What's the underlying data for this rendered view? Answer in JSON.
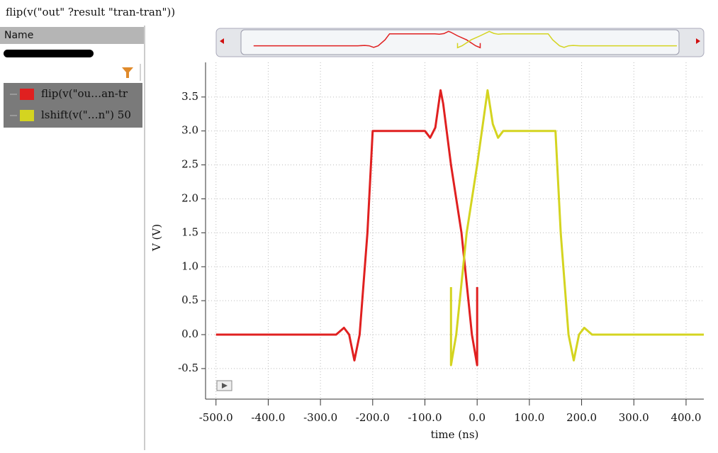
{
  "window": {
    "title": "flip(v(\"out\" ?result \"tran-tran\"))"
  },
  "sidebar": {
    "header": "Name"
  },
  "chart_data": {
    "type": "line",
    "xlabel": "time (ns)",
    "ylabel": "V (V)",
    "xlim": [
      -520,
      434
    ],
    "ylim": [
      -0.95,
      4.01
    ],
    "xticks": [
      {
        "value": -500,
        "label": "-500.0"
      },
      {
        "value": -400,
        "label": "-400.0"
      },
      {
        "value": -300,
        "label": "-300.0"
      },
      {
        "value": -200,
        "label": "-200.0"
      },
      {
        "value": -100,
        "label": "-100.0"
      },
      {
        "value": 0,
        "label": "0.0"
      },
      {
        "value": 100,
        "label": "100.0"
      },
      {
        "value": 200,
        "label": "200.0"
      },
      {
        "value": 300,
        "label": "300.0"
      },
      {
        "value": 400,
        "label": "400.0"
      }
    ],
    "yticks": [
      -0.5,
      {
        "value": 0,
        "label": "0.0"
      },
      0.5,
      {
        "value": 1,
        "label": "1.0"
      },
      1.5,
      {
        "value": 2,
        "label": "2.0"
      },
      2.5,
      {
        "value": 3,
        "label": "3.0"
      },
      3.5
    ],
    "grid": true,
    "series": [
      {
        "name": "flip(v(\"ou…an-tr",
        "color": "#e02020",
        "x": [
          -500,
          -270,
          -255,
          -245,
          -235,
          -225,
          -210,
          -200,
          -100,
          -90,
          -80,
          -70,
          -65,
          -50,
          -30,
          -10,
          0,
          0
        ],
        "values": [
          0,
          0,
          0.1,
          0,
          -0.38,
          0,
          1.5,
          3.0,
          3.0,
          2.9,
          3.05,
          3.6,
          3.4,
          2.5,
          1.5,
          0,
          -0.45,
          0.7
        ]
      },
      {
        "name": "lshift(v(\"…n\") 50",
        "color": "#d4d420",
        "x": [
          -50,
          -50,
          -40,
          -20,
          0,
          20,
          30,
          40,
          50,
          150,
          160,
          175,
          185,
          195,
          205,
          220,
          434
        ],
        "values": [
          0.7,
          -0.45,
          0,
          1.5,
          2.5,
          3.6,
          3.1,
          2.9,
          3.0,
          3.0,
          1.5,
          0,
          -0.38,
          0,
          0.1,
          0,
          0
        ]
      }
    ]
  }
}
